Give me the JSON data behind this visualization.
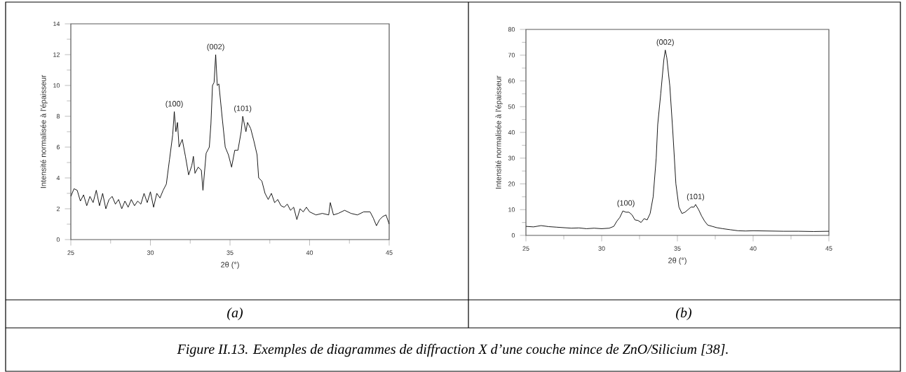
{
  "chart_data": [
    {
      "type": "line",
      "title": "(a)",
      "xlabel": "2θ (°)",
      "ylabel": "Intensité normalisée à l'épaisseur",
      "xlim": [
        25,
        45
      ],
      "xticks": [
        25,
        30,
        35,
        40,
        45
      ],
      "ylim": [
        0,
        14
      ],
      "yticks": [
        0,
        2,
        4,
        6,
        8,
        10,
        12,
        14
      ],
      "x": [
        25.0,
        25.2,
        25.4,
        25.6,
        25.8,
        26.0,
        26.2,
        26.4,
        26.6,
        26.8,
        27.0,
        27.2,
        27.4,
        27.6,
        27.8,
        28.0,
        28.2,
        28.4,
        28.6,
        28.8,
        29.0,
        29.2,
        29.4,
        29.6,
        29.8,
        30.0,
        30.2,
        30.4,
        30.6,
        30.8,
        31.0,
        31.2,
        31.4,
        31.5,
        31.6,
        31.7,
        31.8,
        32.0,
        32.2,
        32.4,
        32.6,
        32.7,
        32.8,
        33.0,
        33.2,
        33.3,
        33.5,
        33.7,
        33.8,
        33.9,
        34.0,
        34.1,
        34.2,
        34.3,
        34.5,
        34.7,
        34.9,
        35.1,
        35.3,
        35.5,
        35.7,
        35.8,
        36.0,
        36.1,
        36.3,
        36.5,
        36.7,
        36.8,
        37.0,
        37.2,
        37.4,
        37.6,
        37.8,
        38.0,
        38.2,
        38.4,
        38.6,
        38.8,
        39.0,
        39.2,
        39.4,
        39.6,
        39.8,
        40.0,
        40.4,
        40.8,
        41.2,
        41.3,
        41.5,
        41.8,
        42.2,
        42.6,
        43.0,
        43.4,
        43.8,
        44.0,
        44.2,
        44.4,
        44.6,
        44.8,
        45.0
      ],
      "series": [
        {
          "color": "#000000",
          "values": [
            2.8,
            3.3,
            3.2,
            2.5,
            2.9,
            2.2,
            2.8,
            2.4,
            3.2,
            2.2,
            3.0,
            2.0,
            2.6,
            2.8,
            2.3,
            2.6,
            2.0,
            2.5,
            2.1,
            2.6,
            2.2,
            2.5,
            2.3,
            3.0,
            2.4,
            3.1,
            2.1,
            3.0,
            2.7,
            3.2,
            3.6,
            5.2,
            6.8,
            8.3,
            7.0,
            7.6,
            6.0,
            6.5,
            5.4,
            4.2,
            4.8,
            5.4,
            4.3,
            4.7,
            4.5,
            3.2,
            5.6,
            6.0,
            7.5,
            10.0,
            10.2,
            12.0,
            10.0,
            10.1,
            8.0,
            6.0,
            5.5,
            4.7,
            5.8,
            5.8,
            7.0,
            8.0,
            7.0,
            7.6,
            7.2,
            6.4,
            5.5,
            4.0,
            3.8,
            3.0,
            2.6,
            3.0,
            2.4,
            2.6,
            2.2,
            2.1,
            2.3,
            1.9,
            2.1,
            1.3,
            2.0,
            1.8,
            2.1,
            1.8,
            1.6,
            1.7,
            1.6,
            2.4,
            1.6,
            1.7,
            1.9,
            1.7,
            1.6,
            1.8,
            1.8,
            1.4,
            0.9,
            1.3,
            1.5,
            1.6,
            1.0
          ]
        }
      ],
      "annotations": [
        {
          "text": "(100)",
          "x": 31.5,
          "y": 8.3
        },
        {
          "text": "(002)",
          "x": 34.1,
          "y": 12
        },
        {
          "text": "(101)",
          "x": 35.8,
          "y": 8
        },
        "Figure II.13.  Exemples de diagrammes de diffraction X d’une couche mince de ZnO/Silicium [38]."
      ]
    },
    {
      "type": "line",
      "title": "(b)",
      "xlabel": "2θ (°)",
      "ylabel": "Intensité normalisée à l'épaisseur",
      "xlim": [
        25,
        45
      ],
      "xticks": [
        25,
        30,
        35,
        40,
        45
      ],
      "ylim": [
        0,
        80
      ],
      "yticks": [
        0,
        10,
        20,
        30,
        40,
        50,
        60,
        70,
        80
      ],
      "x": [
        25.0,
        25.5,
        26.0,
        26.5,
        27.0,
        27.5,
        28.0,
        28.5,
        29.0,
        29.5,
        30.0,
        30.5,
        30.8,
        31.0,
        31.2,
        31.4,
        31.6,
        31.8,
        32.0,
        32.2,
        32.4,
        32.6,
        32.8,
        33.0,
        33.2,
        33.4,
        33.6,
        33.7,
        33.9,
        34.1,
        34.2,
        34.3,
        34.5,
        34.7,
        34.9,
        35.1,
        35.3,
        35.5,
        35.7,
        35.9,
        36.1,
        36.2,
        36.4,
        36.6,
        36.8,
        37.0,
        37.3,
        37.6,
        38.0,
        38.5,
        39.0,
        39.5,
        40.0,
        41.0,
        42.0,
        43.0,
        44.0,
        45.0
      ],
      "series": [
        {
          "color": "#000000",
          "values": [
            3.5,
            3.3,
            3.8,
            3.4,
            3.2,
            3.0,
            2.8,
            2.9,
            2.6,
            2.8,
            2.6,
            2.8,
            3.5,
            5.5,
            7.0,
            9.5,
            9.0,
            9.0,
            8.0,
            6.0,
            5.8,
            5.0,
            6.5,
            6.0,
            8.5,
            15,
            30,
            43,
            55,
            68,
            72,
            69,
            58,
            40,
            20,
            11,
            8.5,
            9.0,
            10,
            11,
            11,
            12,
            10,
            7.5,
            5.5,
            4.0,
            3.5,
            3.0,
            2.6,
            2.2,
            1.8,
            1.7,
            1.8,
            1.7,
            1.6,
            1.6,
            1.5,
            1.6
          ]
        }
      ],
      "annotations": [
        {
          "text": "(100)",
          "x": 31.6,
          "y": 9.5
        },
        {
          "text": "(002)",
          "x": 34.2,
          "y": 72
        },
        {
          "text": "(101)",
          "x": 36.2,
          "y": 12
        }
      ]
    }
  ]
}
